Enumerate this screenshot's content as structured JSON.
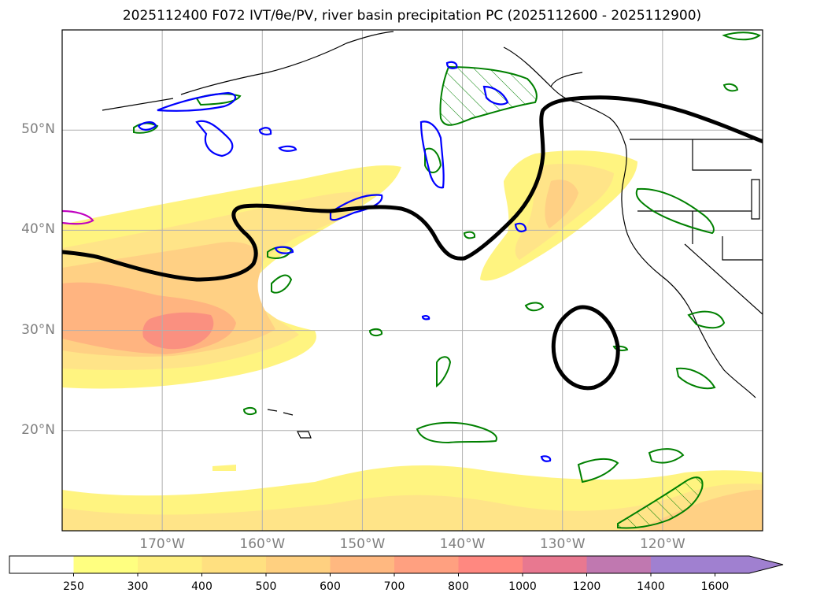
{
  "title": "2025112400 F072 IVT/θe/PV, river basin precipitation PC (2025112600 - 2025112900)",
  "map": {
    "lon_range": [
      -180,
      -110
    ],
    "lat_range": [
      10,
      60
    ],
    "lat_ticks": [
      {
        "value": 50,
        "label": "50°N"
      },
      {
        "value": 40,
        "label": "40°N"
      },
      {
        "value": 30,
        "label": "30°N"
      },
      {
        "value": 20,
        "label": "20°N"
      }
    ],
    "lon_ticks": [
      {
        "value": -170,
        "label": "170°W"
      },
      {
        "value": -160,
        "label": "160°W"
      },
      {
        "value": -150,
        "label": "150°W"
      },
      {
        "value": -140,
        "label": "140°W"
      },
      {
        "value": -130,
        "label": "130°W"
      },
      {
        "value": -120,
        "label": "120°W"
      }
    ],
    "gridlines": true
  },
  "colorbar": {
    "levels": [
      "250",
      "300",
      "400",
      "500",
      "600",
      "700",
      "800",
      "1000",
      "1200",
      "1400",
      "1600"
    ],
    "colors": [
      "#ffffff",
      "#ffff80",
      "#fff080",
      "#ffe080",
      "#ffd080",
      "#ffb880",
      "#ffa080",
      "#ff8880",
      "#e87890",
      "#c078b0",
      "#a080d0",
      "#a080d0"
    ],
    "extend": "max"
  },
  "colors": {
    "ivt_levels": [
      "#fff480",
      "#ffe488",
      "#ffd084",
      "#ffb480",
      "#fa9080"
    ],
    "theta_contour": "#000000",
    "pv_contour": "#0000ff",
    "precip_contour": "#008000",
    "magenta_contour": "#c000c0",
    "coast": "#000000",
    "grid": "#b0b0b0"
  }
}
